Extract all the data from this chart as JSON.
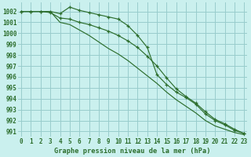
{
  "title": "Graphe pression niveau de la mer (hPa)",
  "background_color": "#caf0ee",
  "grid_color": "#99cccc",
  "line_color": "#2d6e2d",
  "x_values": [
    0,
    1,
    2,
    3,
    4,
    5,
    6,
    7,
    8,
    9,
    10,
    11,
    12,
    13,
    14,
    15,
    16,
    17,
    18,
    19,
    20,
    21,
    22,
    23
  ],
  "series1": [
    1002,
    1002,
    1002,
    1002,
    1001.8,
    1002.4,
    1002.1,
    1001.9,
    1001.7,
    1001.5,
    1001.3,
    1000.7,
    999.8,
    998.7,
    996.2,
    995.3,
    994.6,
    994.1,
    993.5,
    992.6,
    992.0,
    991.6,
    991.1,
    990.8
  ],
  "series2": [
    1002,
    1002,
    1002,
    1001.9,
    1001.4,
    1001.3,
    1001.0,
    1000.8,
    1000.5,
    1000.2,
    999.8,
    999.3,
    998.7,
    997.9,
    997.0,
    995.9,
    994.9,
    994.2,
    993.6,
    992.8,
    992.1,
    991.7,
    991.2,
    990.8
  ],
  "series3": [
    1002,
    1002,
    1002,
    1002,
    1001.0,
    1000.8,
    1000.3,
    999.8,
    999.2,
    998.6,
    998.1,
    997.5,
    996.8,
    996.1,
    995.4,
    994.6,
    993.9,
    993.3,
    992.7,
    992.0,
    991.5,
    991.2,
    990.9,
    990.7
  ],
  "ylim": [
    990.5,
    1002.8
  ],
  "yticks": [
    991,
    992,
    993,
    994,
    995,
    996,
    997,
    998,
    999,
    1000,
    1001,
    1002
  ],
  "xlim": [
    -0.3,
    23.3
  ],
  "xticks": [
    0,
    1,
    2,
    3,
    4,
    5,
    6,
    7,
    8,
    9,
    10,
    11,
    12,
    13,
    14,
    15,
    16,
    17,
    18,
    19,
    20,
    21,
    22,
    23
  ]
}
